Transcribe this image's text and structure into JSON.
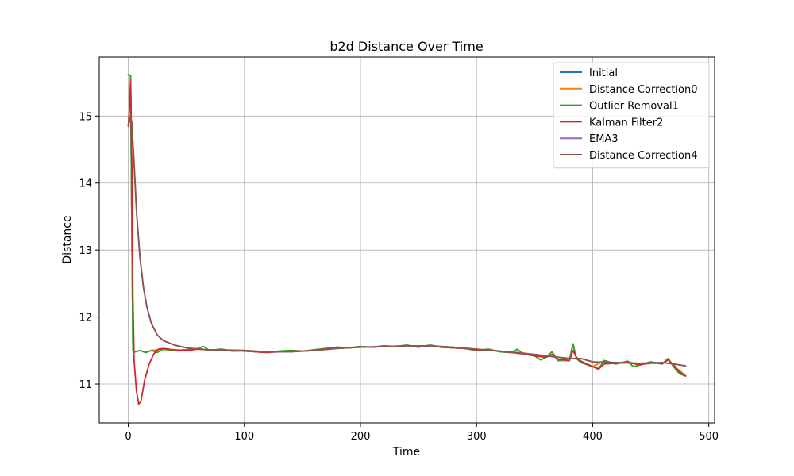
{
  "chart_data": {
    "type": "line",
    "title": "b2d Distance Over Time",
    "xlabel": "Time",
    "ylabel": "Distance",
    "xlim": [
      -25,
      505
    ],
    "ylim": [
      10.42,
      15.88
    ],
    "xticks": [
      0,
      100,
      200,
      300,
      400,
      500
    ],
    "yticks": [
      11,
      12,
      13,
      14,
      15
    ],
    "grid": true,
    "legend_position": "top-right",
    "series": [
      {
        "name": "Initial",
        "color": "#1f77b4",
        "x": [
          0,
          2,
          3,
          4,
          6,
          10,
          15,
          20,
          30,
          40,
          50,
          60,
          70,
          80,
          90,
          100,
          110,
          120,
          130,
          140,
          150,
          160,
          170,
          180,
          190,
          200,
          210,
          220,
          230,
          240,
          250,
          260,
          270,
          280,
          290,
          300,
          310,
          320,
          330,
          340,
          350,
          360,
          365,
          370,
          380,
          383,
          386,
          390,
          400,
          410,
          420,
          430,
          440,
          450,
          460,
          465,
          470,
          475,
          480
        ],
        "y": [
          15.62,
          15.6,
          13.5,
          11.5,
          11.48,
          11.5,
          11.47,
          11.5,
          11.52,
          11.5,
          11.51,
          11.53,
          11.5,
          11.52,
          11.49,
          11.5,
          11.48,
          11.47,
          11.49,
          11.5,
          11.49,
          11.51,
          11.53,
          11.55,
          11.54,
          11.56,
          11.55,
          11.57,
          11.56,
          11.58,
          11.55,
          11.58,
          11.55,
          11.54,
          11.53,
          11.5,
          11.52,
          11.48,
          11.47,
          11.45,
          11.42,
          11.4,
          11.48,
          11.35,
          11.35,
          11.6,
          11.38,
          11.32,
          11.26,
          11.35,
          11.3,
          11.34,
          11.28,
          11.33,
          11.3,
          11.38,
          11.25,
          11.2,
          11.12
        ]
      },
      {
        "name": "Distance Correction0",
        "color": "#ff7f0e",
        "x": [
          0,
          2,
          3,
          4,
          6,
          10,
          15,
          20,
          30,
          40,
          50,
          60,
          70,
          80,
          90,
          100,
          110,
          120,
          130,
          140,
          150,
          160,
          170,
          180,
          190,
          200,
          210,
          220,
          230,
          240,
          250,
          260,
          270,
          280,
          290,
          300,
          310,
          320,
          330,
          340,
          350,
          360,
          365,
          370,
          380,
          383,
          386,
          390,
          400,
          410,
          420,
          430,
          440,
          450,
          460,
          465,
          470,
          475,
          480
        ],
        "y": [
          15.62,
          15.6,
          13.5,
          11.5,
          11.48,
          11.5,
          11.47,
          11.5,
          11.52,
          11.5,
          11.51,
          11.53,
          11.5,
          11.52,
          11.49,
          11.5,
          11.48,
          11.47,
          11.49,
          11.5,
          11.49,
          11.51,
          11.53,
          11.55,
          11.54,
          11.56,
          11.55,
          11.57,
          11.56,
          11.58,
          11.55,
          11.58,
          11.55,
          11.54,
          11.53,
          11.5,
          11.52,
          11.48,
          11.47,
          11.45,
          11.42,
          11.4,
          11.48,
          11.35,
          11.35,
          11.6,
          11.38,
          11.32,
          11.26,
          11.35,
          11.3,
          11.34,
          11.28,
          11.33,
          11.3,
          11.38,
          11.25,
          11.2,
          11.12
        ]
      },
      {
        "name": "Outlier Removal1",
        "color": "#2ca02c",
        "x": [
          0,
          2,
          3,
          4,
          6,
          10,
          15,
          20,
          25,
          30,
          40,
          50,
          60,
          65,
          70,
          80,
          90,
          100,
          110,
          120,
          130,
          140,
          150,
          160,
          170,
          180,
          190,
          200,
          210,
          220,
          230,
          240,
          250,
          260,
          270,
          280,
          290,
          300,
          310,
          320,
          330,
          335,
          340,
          350,
          355,
          360,
          365,
          370,
          375,
          380,
          383,
          386,
          390,
          400,
          405,
          410,
          420,
          430,
          435,
          440,
          450,
          460,
          465,
          470,
          475,
          480
        ],
        "y": [
          15.62,
          15.6,
          13.5,
          11.5,
          11.48,
          11.5,
          11.47,
          11.5,
          11.47,
          11.52,
          11.5,
          11.51,
          11.53,
          11.56,
          11.5,
          11.52,
          11.49,
          11.5,
          11.48,
          11.47,
          11.49,
          11.5,
          11.49,
          11.51,
          11.53,
          11.55,
          11.54,
          11.56,
          11.55,
          11.57,
          11.56,
          11.58,
          11.55,
          11.58,
          11.55,
          11.54,
          11.53,
          11.5,
          11.52,
          11.48,
          11.47,
          11.52,
          11.45,
          11.42,
          11.36,
          11.4,
          11.48,
          11.35,
          11.36,
          11.35,
          11.6,
          11.38,
          11.32,
          11.26,
          11.23,
          11.35,
          11.3,
          11.34,
          11.26,
          11.28,
          11.33,
          11.3,
          11.38,
          11.25,
          11.15,
          11.12
        ]
      },
      {
        "name": "Kalman Filter2",
        "color": "#d62728",
        "x": [
          0,
          1,
          2,
          3,
          4,
          5,
          7,
          9,
          11,
          14,
          18,
          22,
          26,
          30,
          40,
          50,
          60,
          70,
          80,
          90,
          100,
          110,
          120,
          130,
          140,
          150,
          160,
          170,
          180,
          190,
          200,
          210,
          220,
          230,
          240,
          250,
          260,
          270,
          280,
          290,
          300,
          310,
          320,
          330,
          340,
          350,
          360,
          365,
          370,
          380,
          383,
          386,
          390,
          400,
          405,
          410,
          420,
          430,
          440,
          450,
          460,
          465,
          470,
          475,
          480
        ],
        "y": [
          14.85,
          15.1,
          15.55,
          14.4,
          12.3,
          11.35,
          10.9,
          10.7,
          10.75,
          11.05,
          11.3,
          11.45,
          11.52,
          11.53,
          11.51,
          11.5,
          11.52,
          11.51,
          11.51,
          11.5,
          11.49,
          11.48,
          11.47,
          11.48,
          11.49,
          11.49,
          11.5,
          11.52,
          11.54,
          11.54,
          11.55,
          11.55,
          11.56,
          11.56,
          11.57,
          11.56,
          11.57,
          11.55,
          11.54,
          11.53,
          11.51,
          11.51,
          11.49,
          11.47,
          11.45,
          11.42,
          11.4,
          11.44,
          11.37,
          11.35,
          11.5,
          11.4,
          11.34,
          11.26,
          11.22,
          11.3,
          11.31,
          11.32,
          11.29,
          11.31,
          11.31,
          11.36,
          11.28,
          11.18,
          11.12
        ]
      },
      {
        "name": "EMA3",
        "color": "#9467bd",
        "x": [
          0,
          2,
          3,
          5,
          7,
          10,
          13,
          16,
          20,
          25,
          30,
          40,
          50,
          60,
          70,
          80,
          100,
          120,
          140,
          160,
          180,
          200,
          220,
          240,
          260,
          280,
          300,
          320,
          340,
          360,
          380,
          390,
          400,
          420,
          440,
          460,
          470,
          480
        ],
        "y": [
          14.85,
          15.0,
          14.9,
          14.3,
          13.6,
          12.9,
          12.45,
          12.15,
          11.9,
          11.73,
          11.65,
          11.58,
          11.54,
          11.52,
          11.51,
          11.51,
          11.5,
          11.48,
          11.48,
          11.5,
          11.53,
          11.55,
          11.56,
          11.57,
          11.57,
          11.55,
          11.52,
          11.49,
          11.46,
          11.42,
          11.38,
          11.38,
          11.33,
          11.32,
          11.31,
          11.32,
          11.3,
          11.27
        ]
      },
      {
        "name": "Distance Correction4",
        "color": "#8c564b",
        "x": [
          0,
          2,
          3,
          5,
          7,
          10,
          13,
          16,
          20,
          25,
          30,
          40,
          50,
          60,
          70,
          80,
          100,
          120,
          140,
          160,
          180,
          200,
          220,
          240,
          260,
          280,
          300,
          320,
          340,
          360,
          380,
          390,
          400,
          420,
          440,
          460,
          470,
          480
        ],
        "y": [
          14.85,
          15.0,
          14.9,
          14.3,
          13.6,
          12.9,
          12.45,
          12.15,
          11.9,
          11.73,
          11.65,
          11.58,
          11.54,
          11.52,
          11.51,
          11.51,
          11.5,
          11.48,
          11.48,
          11.5,
          11.53,
          11.55,
          11.56,
          11.57,
          11.57,
          11.55,
          11.52,
          11.49,
          11.46,
          11.42,
          11.38,
          11.38,
          11.33,
          11.32,
          11.31,
          11.32,
          11.3,
          11.27
        ]
      }
    ]
  }
}
